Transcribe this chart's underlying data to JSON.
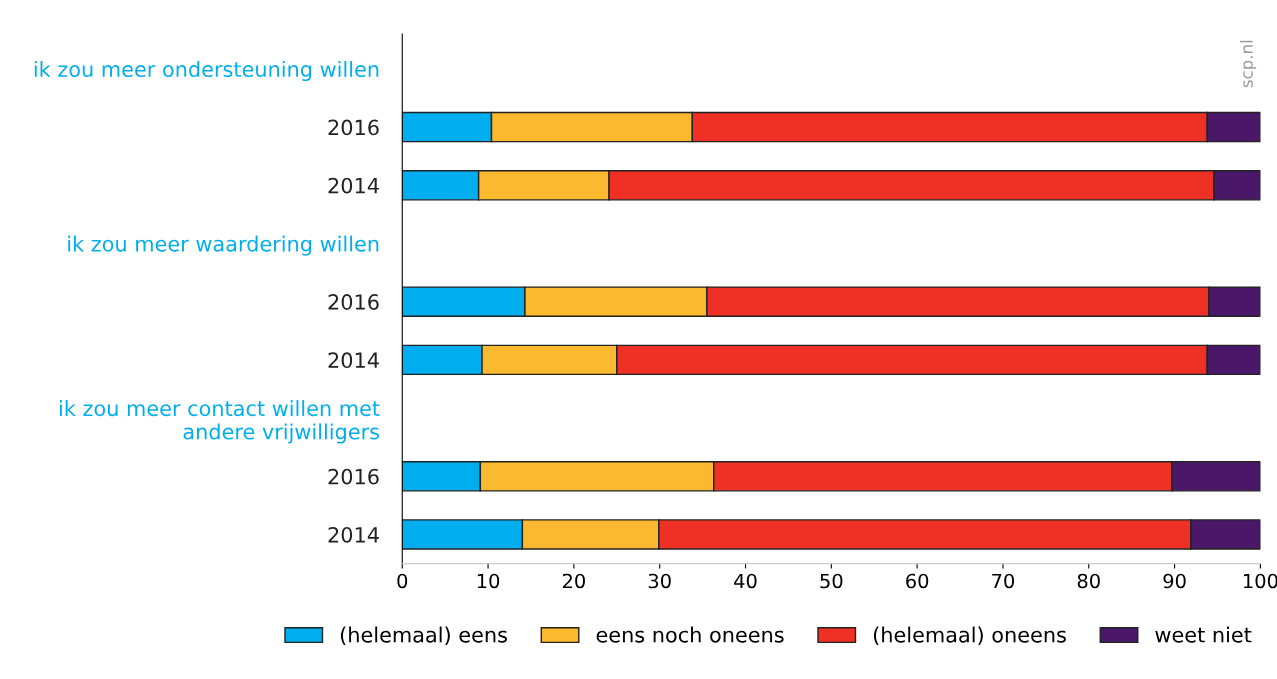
{
  "chart_data": {
    "type": "bar",
    "orientation": "horizontal",
    "stacked": true,
    "categories": [
      "ik zou meer ondersteuning willen",
      "2016",
      "2014",
      "ik zou meer waardering willen",
      "2016",
      "2014",
      "ik zou meer contact willen met\nandere vrijwilligers",
      "2016",
      "2014"
    ],
    "series": [
      {
        "name": "(helemaal) eens",
        "color": "#00aeef",
        "values": [
          null,
          10.4,
          8.9,
          null,
          14.3,
          9.3,
          null,
          9.1,
          14.0
        ]
      },
      {
        "name": "eens noch oneens",
        "color": "#fbb92f",
        "values": [
          null,
          23.4,
          15.2,
          null,
          21.2,
          15.7,
          null,
          27.2,
          15.9
        ]
      },
      {
        "name": "(helemaal) oneens",
        "color": "#ee3124",
        "values": [
          null,
          60.0,
          70.5,
          null,
          58.5,
          68.8,
          null,
          53.4,
          62.0
        ]
      },
      {
        "name": "weet niet",
        "color": "#4b1869",
        "values": [
          null,
          6.2,
          5.4,
          null,
          6.0,
          6.2,
          null,
          10.3,
          8.1
        ]
      }
    ],
    "xlim": [
      0,
      100
    ],
    "xticks": [
      0,
      10,
      20,
      30,
      40,
      50,
      60,
      70,
      80,
      90,
      100
    ],
    "annotations": [
      "scp.nl"
    ],
    "legend": "bottom",
    "grid": false
  }
}
